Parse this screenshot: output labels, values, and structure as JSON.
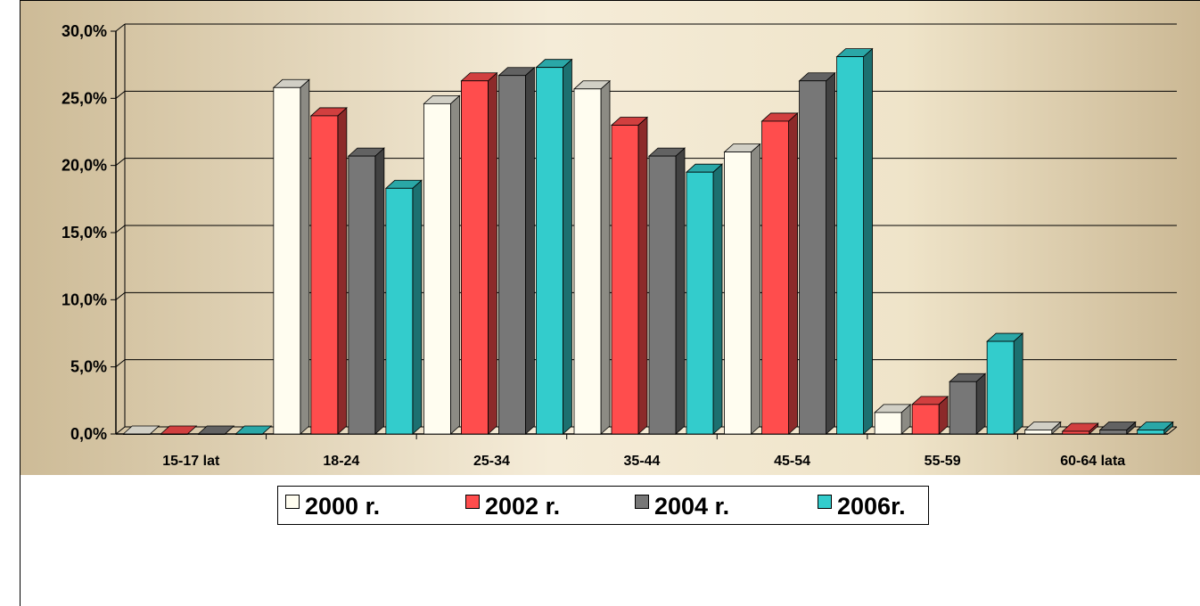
{
  "chart_data": {
    "type": "bar",
    "categories": [
      "15-17 lat",
      "18-24",
      "25-34",
      "35-44",
      "45-54",
      "55-59",
      "60-64 lata"
    ],
    "series": [
      {
        "name": "2000 r.",
        "color": "#fffdf0",
        "values": [
          0.0,
          25.8,
          24.6,
          25.7,
          21.0,
          1.6,
          0.3
        ]
      },
      {
        "name": "2002 r.",
        "color": "#ff4d4d",
        "values": [
          0.0,
          23.7,
          26.3,
          23.0,
          23.3,
          2.2,
          0.2
        ]
      },
      {
        "name": "2004 r.",
        "color": "#777777",
        "values": [
          0.0,
          20.7,
          26.7,
          20.7,
          26.3,
          3.9,
          0.3
        ]
      },
      {
        "name": "2006r.",
        "color": "#33cccc",
        "values": [
          0.0,
          18.3,
          27.3,
          19.5,
          28.1,
          6.9,
          0.3
        ]
      }
    ],
    "yticks": [
      "0,0%",
      "5,0%",
      "10,0%",
      "15,0%",
      "20,0%",
      "25,0%",
      "30,0%"
    ],
    "ylim": [
      0,
      30
    ],
    "grid": true,
    "legend_position": "bottom"
  }
}
